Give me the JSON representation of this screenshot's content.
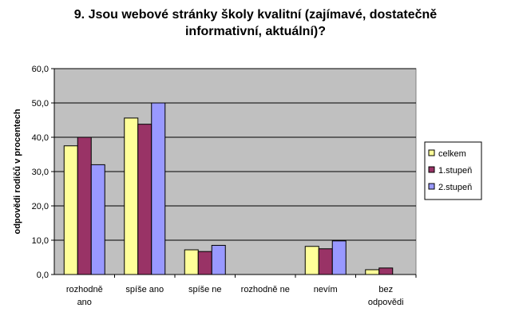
{
  "chart_data": {
    "type": "bar",
    "title": "9. Jsou webové stránky školy kvalitní (zajímavé, dostatečně\ninformativní, aktuální)?",
    "ylabel": "odpovědi rodičů v procentech",
    "xlabel": "",
    "ylim": [
      0,
      60
    ],
    "yticks": [
      "0,0",
      "10,0",
      "20,0",
      "30,0",
      "40,0",
      "50,0",
      "60,0"
    ],
    "categories": [
      [
        "rozhodně",
        "ano"
      ],
      [
        "spíše ano"
      ],
      [
        "spíše ne"
      ],
      [
        "rozhodně ne"
      ],
      [
        "nevím"
      ],
      [
        "bez",
        "odpovědi"
      ]
    ],
    "series": [
      {
        "name": "celkem",
        "color": "#FFFF99",
        "values": [
          37.5,
          45.6,
          7.2,
          0,
          8.2,
          1.4
        ]
      },
      {
        "name": "1.stupeň",
        "color": "#993366",
        "values": [
          40.0,
          43.8,
          6.7,
          0,
          7.5,
          1.9
        ]
      },
      {
        "name": "2.stupeň",
        "color": "#9999FF",
        "values": [
          32.0,
          50.0,
          8.5,
          0,
          9.8,
          0
        ]
      }
    ],
    "plot_background": "#C0C0C0",
    "grid": true,
    "legend": "right"
  }
}
